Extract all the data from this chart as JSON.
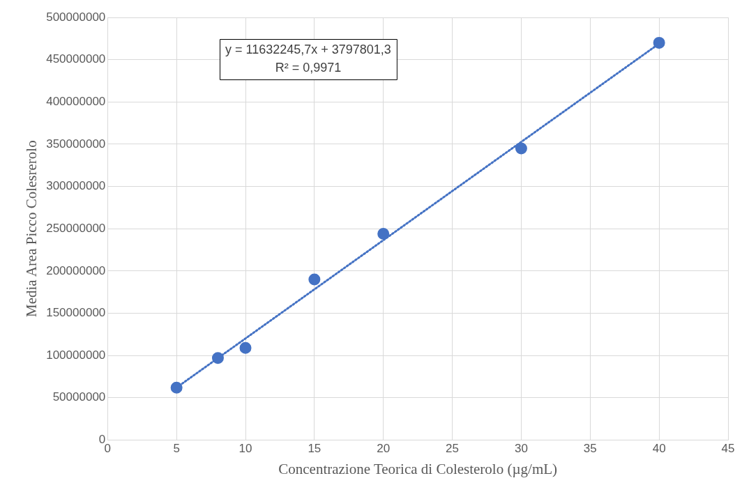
{
  "chart_data": {
    "type": "scatter",
    "xlabel": "Concentrazione Teorica di Colesterolo (µg/mL)",
    "ylabel": "Media Area Picco Colesrerolo",
    "x": [
      5,
      8,
      10,
      15,
      20,
      30,
      40
    ],
    "series": [
      {
        "color": "#4472c4",
        "marker": "circle",
        "values": [
          62000000,
          97000000,
          109000000,
          190000000,
          244000000,
          345000000,
          470000000
        ]
      },
      {
        "type": "line",
        "color": "#4472c4",
        "line_style": "dotted",
        "marker": "none",
        "x": [
          5,
          40
        ],
        "values": [
          62000000,
          469000000
        ]
      }
    ],
    "xlim": [
      0,
      45
    ],
    "xticks": [
      0,
      5,
      10,
      15,
      20,
      25,
      30,
      35,
      40,
      45
    ],
    "ylim": [
      0,
      500000000
    ],
    "yticks": [
      0,
      50000000,
      100000000,
      150000000,
      200000000,
      250000000,
      300000000,
      350000000,
      400000000,
      450000000,
      500000000
    ],
    "grid": true,
    "legend": false,
    "annotations": [
      "y = 11632245,7x + 3797801,3",
      "R² = 0,9971"
    ]
  }
}
